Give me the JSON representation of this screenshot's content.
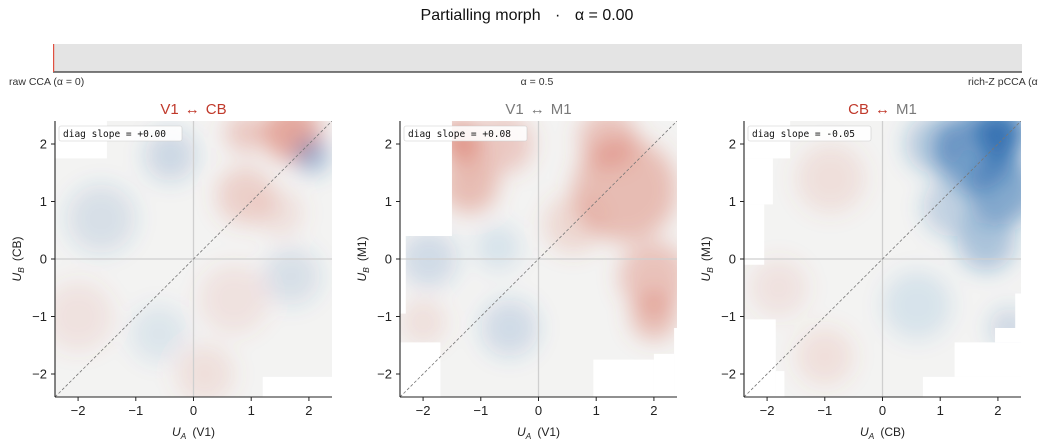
{
  "figure": {
    "title_left": "Partialling morph",
    "title_sep": "·",
    "title_right": "α = 0.00"
  },
  "slider": {
    "alpha": 0.0,
    "label_left": "raw CCA  (α = 0)",
    "label_mid": "α = 0.5",
    "label_right": "rich-Z pCCA  (α",
    "colors": {
      "track": "#e4e4e4",
      "marker": "#e05040",
      "baseline": "#333333"
    }
  },
  "colors": {
    "positive": "#d6604d",
    "negative": "#2166ac",
    "title_highlight": "#c0392b",
    "title_muted": "#7a7a7a"
  },
  "chart_data": [
    {
      "type": "heatmap",
      "title_a": "V1",
      "title_arrow": "↔",
      "title_b": "CB",
      "title_a_color": "highlight",
      "title_b_color": "highlight",
      "xlabel_sym": "U",
      "xlabel_sub": "A",
      "xlabel_area": "(V1)",
      "ylabel_sym": "U",
      "ylabel_sub": "B",
      "ylabel_area": "(CB)",
      "xlim": [
        -2.4,
        2.4
      ],
      "ylim": [
        -2.4,
        2.4
      ],
      "xticks": [
        -2,
        -1,
        0,
        1,
        2
      ],
      "yticks": [
        -2,
        -1,
        0,
        1,
        2
      ],
      "tick_labels": [
        "−2",
        "−1",
        "0",
        "1",
        "2"
      ],
      "annotation": "diag slope = +0.00",
      "diag_slope": 0.0,
      "masked_regions": [
        {
          "x": [
            -2.4,
            -1.5
          ],
          "y": [
            1.75,
            2.4
          ]
        },
        {
          "x": [
            1.2,
            2.4
          ],
          "y": [
            -2.4,
            -2.05
          ]
        }
      ],
      "blobs": [
        {
          "x": 1.7,
          "y": 2.2,
          "r": 0.5,
          "v": 0.55
        },
        {
          "x": 0.9,
          "y": 2.2,
          "r": 0.35,
          "v": 0.3
        },
        {
          "x": 0.9,
          "y": 1.1,
          "r": 0.5,
          "v": 0.25
        },
        {
          "x": 2.05,
          "y": 1.8,
          "r": 0.3,
          "v": -0.45
        },
        {
          "x": -0.4,
          "y": 1.8,
          "r": 0.45,
          "v": -0.2
        },
        {
          "x": -1.6,
          "y": 0.7,
          "r": 0.6,
          "v": -0.15
        },
        {
          "x": -2.0,
          "y": -1.0,
          "r": 0.6,
          "v": 0.12
        },
        {
          "x": 0.7,
          "y": -0.7,
          "r": 0.6,
          "v": 0.12
        },
        {
          "x": 1.7,
          "y": -0.3,
          "r": 0.5,
          "v": -0.15
        },
        {
          "x": -0.6,
          "y": -1.3,
          "r": 0.5,
          "v": -0.1
        },
        {
          "x": 0.2,
          "y": -2.0,
          "r": 0.5,
          "v": 0.15
        },
        {
          "x": 1.5,
          "y": 0.8,
          "r": 0.4,
          "v": 0.15
        }
      ]
    },
    {
      "type": "heatmap",
      "title_a": "V1",
      "title_arrow": "↔",
      "title_b": "M1",
      "title_a_color": "muted",
      "title_b_color": "muted",
      "xlabel_sym": "U",
      "xlabel_sub": "A",
      "xlabel_area": "(V1)",
      "ylabel_sym": "U",
      "ylabel_sub": "B",
      "ylabel_area": "(M1)",
      "xlim": [
        -2.4,
        2.4
      ],
      "ylim": [
        -2.4,
        2.4
      ],
      "xticks": [
        -2,
        -1,
        0,
        1,
        2
      ],
      "yticks": [
        -2,
        -1,
        0,
        1,
        2
      ],
      "tick_labels": [
        "−2",
        "−1",
        "0",
        "1",
        "2"
      ],
      "annotation": "diag slope = +0.08",
      "diag_slope": 0.08,
      "masked_regions": [
        {
          "x": [
            -2.4,
            -1.5
          ],
          "y": [
            0.4,
            2.4
          ]
        },
        {
          "x": [
            -2.4,
            -2.3
          ],
          "y": [
            -0.95,
            0.4
          ]
        },
        {
          "x": [
            -2.4,
            -1.7
          ],
          "y": [
            -2.4,
            -1.45
          ]
        },
        {
          "x": [
            2.0,
            2.4
          ],
          "y": [
            -1.2,
            -1.2
          ]
        },
        {
          "x": [
            2.35,
            2.4
          ],
          "y": [
            -2.4,
            -1.2
          ]
        },
        {
          "x": [
            2.0,
            2.35
          ],
          "y": [
            -2.4,
            -1.65
          ]
        },
        {
          "x": [
            0.95,
            2.0
          ],
          "y": [
            -2.4,
            -1.75
          ]
        }
      ],
      "blobs": [
        {
          "x": -1.35,
          "y": 2.05,
          "r": 0.35,
          "v": 0.65
        },
        {
          "x": -1.2,
          "y": 1.3,
          "r": 0.5,
          "v": 0.4
        },
        {
          "x": -0.6,
          "y": 2.0,
          "r": 0.5,
          "v": 0.3
        },
        {
          "x": 1.5,
          "y": 1.2,
          "r": 0.9,
          "v": 0.4
        },
        {
          "x": 2.0,
          "y": -0.3,
          "r": 0.6,
          "v": 0.35
        },
        {
          "x": 1.2,
          "y": 2.1,
          "r": 0.5,
          "v": 0.35
        },
        {
          "x": -1.9,
          "y": 0.0,
          "r": 0.5,
          "v": -0.18
        },
        {
          "x": -0.7,
          "y": 0.2,
          "r": 0.4,
          "v": -0.12
        },
        {
          "x": -0.5,
          "y": -1.2,
          "r": 0.5,
          "v": -0.18
        },
        {
          "x": 0.6,
          "y": 0.6,
          "r": 0.5,
          "v": 0.2
        },
        {
          "x": 2.0,
          "y": -1.0,
          "r": 0.4,
          "v": 0.4
        },
        {
          "x": -2.0,
          "y": -1.1,
          "r": 0.4,
          "v": 0.15
        }
      ]
    },
    {
      "type": "heatmap",
      "title_a": "CB",
      "title_arrow": "↔",
      "title_b": "M1",
      "title_a_color": "highlight",
      "title_b_color": "muted",
      "xlabel_sym": "U",
      "xlabel_sub": "A",
      "xlabel_area": "(CB)",
      "ylabel_sym": "U",
      "ylabel_sub": "B",
      "ylabel_area": "(M1)",
      "xlim": [
        -2.4,
        2.4
      ],
      "ylim": [
        -2.4,
        2.4
      ],
      "xticks": [
        -2,
        -1,
        0,
        1,
        2
      ],
      "yticks": [
        -2,
        -1,
        0,
        1,
        2
      ],
      "tick_labels": [
        "−2",
        "−1",
        "0",
        "1",
        "2"
      ],
      "annotation": "diag slope = -0.05",
      "diag_slope": -0.05,
      "masked_regions": [
        {
          "x": [
            -2.4,
            -1.6
          ],
          "y": [
            1.75,
            2.4
          ]
        },
        {
          "x": [
            -2.4,
            -1.9
          ],
          "y": [
            0.95,
            1.75
          ]
        },
        {
          "x": [
            -2.4,
            -2.05
          ],
          "y": [
            -0.1,
            0.95
          ]
        },
        {
          "x": [
            -2.4,
            -1.85
          ],
          "y": [
            -2.4,
            -1.05
          ]
        },
        {
          "x": [
            -1.85,
            -1.7
          ],
          "y": [
            -2.4,
            -1.95
          ]
        },
        {
          "x": [
            0.7,
            2.4
          ],
          "y": [
            -2.4,
            -2.05
          ]
        },
        {
          "x": [
            1.25,
            2.4
          ],
          "y": [
            -2.05,
            -1.45
          ]
        },
        {
          "x": [
            1.95,
            2.4
          ],
          "y": [
            -1.45,
            -1.2
          ]
        },
        {
          "x": [
            2.3,
            2.4
          ],
          "y": [
            -1.2,
            -0.6
          ]
        }
      ],
      "blobs": [
        {
          "x": 2.05,
          "y": 2.2,
          "r": 0.45,
          "v": -0.85
        },
        {
          "x": 1.6,
          "y": 1.9,
          "r": 0.7,
          "v": -0.6
        },
        {
          "x": 2.1,
          "y": 1.2,
          "r": 0.6,
          "v": -0.55
        },
        {
          "x": 1.8,
          "y": 0.3,
          "r": 0.5,
          "v": -0.35
        },
        {
          "x": 0.9,
          "y": 2.0,
          "r": 0.5,
          "v": -0.3
        },
        {
          "x": 1.2,
          "y": 0.9,
          "r": 0.5,
          "v": -0.25
        },
        {
          "x": -0.9,
          "y": 1.4,
          "r": 0.6,
          "v": 0.15
        },
        {
          "x": -1.8,
          "y": -0.5,
          "r": 0.5,
          "v": 0.12
        },
        {
          "x": -1.0,
          "y": -1.7,
          "r": 0.5,
          "v": 0.14
        },
        {
          "x": 0.6,
          "y": -0.8,
          "r": 0.6,
          "v": -0.12
        },
        {
          "x": 2.2,
          "y": -1.2,
          "r": 0.35,
          "v": -0.2
        }
      ]
    }
  ]
}
